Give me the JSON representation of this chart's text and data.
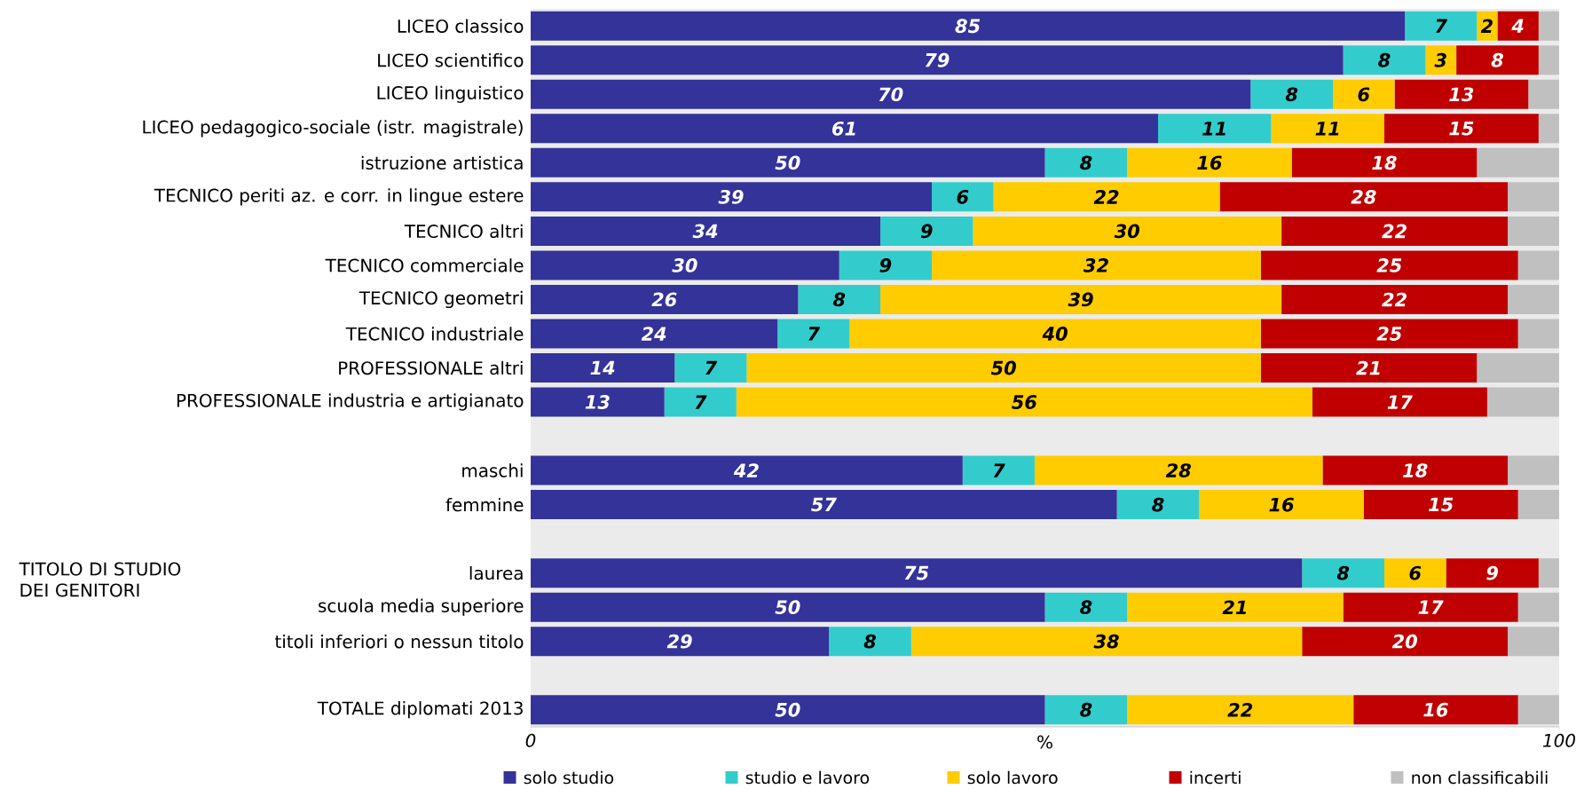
{
  "chart_data": {
    "type": "bar",
    "orientation": "horizontal",
    "stacked": true,
    "categories": [
      "LICEO classico",
      "LICEO scientifico",
      "LICEO linguistico",
      "LICEO pedagogico-sociale (istr. magistrale)",
      "istruzione artistica",
      "TECNICO periti az. e corr. in lingue estere",
      "TECNICO altri",
      "TECNICO commerciale",
      "TECNICO geometri",
      "TECNICO industriale",
      "PROFESSIONALE altri",
      "PROFESSIONALE industria e artigianato",
      null,
      "maschi",
      "femmine",
      null,
      "laurea",
      "scuola media superiore",
      "titoli inferiori o nessun titolo",
      null,
      "TOTALE diplomati 2013"
    ],
    "series": [
      {
        "name": "solo studio",
        "color": "#333399",
        "values": [
          85,
          79,
          70,
          61,
          50,
          39,
          34,
          30,
          26,
          24,
          14,
          13,
          null,
          42,
          57,
          null,
          75,
          50,
          29,
          null,
          50
        ],
        "value_labels": [
          "85",
          "79",
          "70",
          "61",
          "50",
          "39",
          "34",
          "30",
          "26",
          "24",
          "14",
          "13",
          null,
          "42",
          "57",
          null,
          "75",
          "50",
          "29",
          null,
          "50"
        ]
      },
      {
        "name": "studio e lavoro",
        "color": "#33cccc",
        "values": [
          7,
          8,
          8,
          11,
          8,
          6,
          9,
          9,
          8,
          7,
          7,
          7,
          null,
          7,
          8,
          null,
          8,
          8,
          8,
          null,
          8
        ],
        "value_labels": [
          "7",
          "8",
          "8",
          "11",
          "8",
          "6",
          "9",
          "9",
          "8",
          "7",
          "7",
          "7",
          null,
          "7",
          "8",
          null,
          "8",
          "8",
          "8",
          null,
          "8"
        ]
      },
      {
        "name": "solo lavoro",
        "color": "#ffcc00",
        "values": [
          2,
          3,
          6,
          11,
          16,
          22,
          30,
          32,
          39,
          40,
          50,
          56,
          null,
          28,
          16,
          null,
          6,
          21,
          38,
          null,
          22
        ],
        "value_labels": [
          "2",
          "3",
          "6",
          "11",
          "16",
          "22",
          "30",
          "32",
          "39",
          "40",
          "50",
          "56",
          null,
          "28",
          "16",
          null,
          "6",
          "21",
          "38",
          null,
          "22"
        ]
      },
      {
        "name": "incerti",
        "color": "#c00000",
        "values": [
          4,
          8,
          13,
          15,
          18,
          28,
          22,
          25,
          22,
          25,
          21,
          17,
          null,
          18,
          15,
          null,
          9,
          17,
          20,
          null,
          16
        ],
        "value_labels": [
          "4",
          "8",
          "13",
          "15",
          "18",
          "28",
          "22",
          "25",
          "22",
          "25",
          "21",
          "17",
          null,
          "18",
          "15",
          null,
          "9",
          "17",
          "20",
          null,
          "16"
        ]
      },
      {
        "name": "non classificabili",
        "color": "#c0c0c0",
        "values": [
          2,
          2,
          3,
          2,
          8,
          5,
          5,
          4,
          5,
          4,
          8,
          7,
          null,
          5,
          4,
          null,
          2,
          4,
          5,
          null,
          4
        ]
      }
    ],
    "xlim": [
      0,
      100
    ],
    "xticks": [
      0,
      100
    ],
    "xlabel": "%",
    "legend": "bottom",
    "annotations": [
      "TITOLO DI STUDIO DEI GENITORI"
    ]
  }
}
